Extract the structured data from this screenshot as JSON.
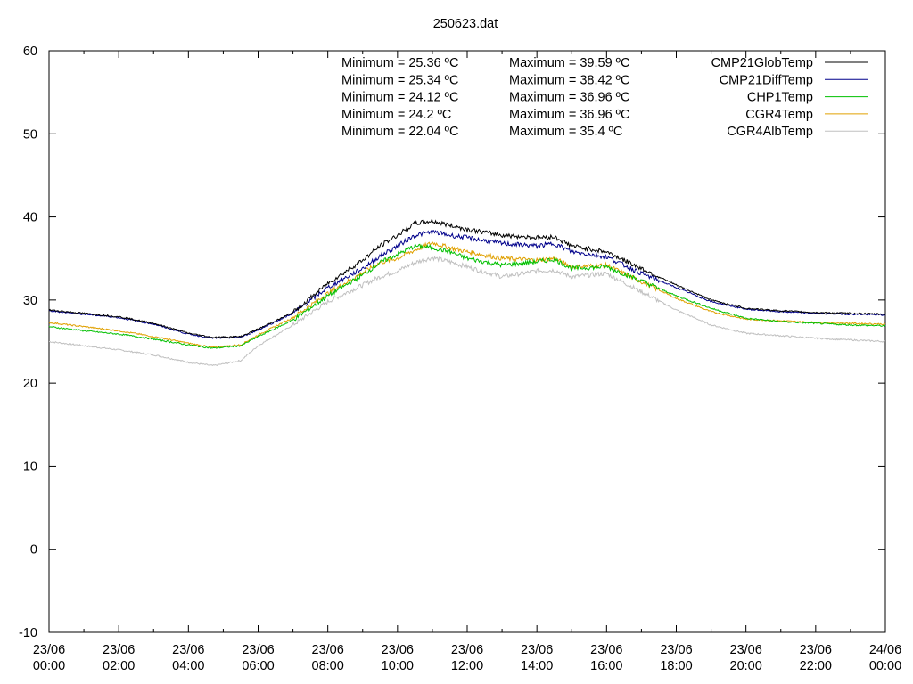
{
  "chart_data": {
    "type": "line",
    "title": "250623.dat",
    "xlabel": "",
    "ylabel": "",
    "xlim": [
      0,
      24
    ],
    "ylim": [
      -10,
      60
    ],
    "yticks": [
      -10,
      0,
      10,
      20,
      30,
      40,
      50,
      60
    ],
    "xticks": [
      {
        "x": 0,
        "date": "23/06",
        "time": "00:00"
      },
      {
        "x": 2,
        "date": "23/06",
        "time": "02:00"
      },
      {
        "x": 4,
        "date": "23/06",
        "time": "04:00"
      },
      {
        "x": 6,
        "date": "23/06",
        "time": "06:00"
      },
      {
        "x": 8,
        "date": "23/06",
        "time": "08:00"
      },
      {
        "x": 10,
        "date": "23/06",
        "time": "10:00"
      },
      {
        "x": 12,
        "date": "23/06",
        "time": "12:00"
      },
      {
        "x": 14,
        "date": "23/06",
        "time": "14:00"
      },
      {
        "x": 16,
        "date": "23/06",
        "time": "16:00"
      },
      {
        "x": 18,
        "date": "23/06",
        "time": "18:00"
      },
      {
        "x": 20,
        "date": "23/06",
        "time": "20:00"
      },
      {
        "x": 22,
        "date": "23/06",
        "time": "22:00"
      },
      {
        "x": 24,
        "date": "24/06",
        "time": "00:00"
      }
    ],
    "grid": false,
    "legend_position": "top-right",
    "stats": [
      {
        "min": "Minimum = 25.36 ºC",
        "max": "Maximum = 39.59 ºC"
      },
      {
        "min": "Minimum = 25.34 ºC",
        "max": "Maximum = 38.42 ºC"
      },
      {
        "min": "Minimum = 24.12 ºC",
        "max": "Maximum = 36.96 ºC"
      },
      {
        "min": "Minimum = 24.2 ºC",
        "max": "Maximum = 36.96 ºC"
      },
      {
        "min": "Minimum = 22.04 ºC",
        "max": "Maximum = 35.4 ºC"
      }
    ],
    "series": [
      {
        "name": "CMP21GlobTemp",
        "color": "#000000",
        "x": [
          0,
          1,
          2,
          3,
          4,
          4.7,
          5.5,
          6,
          7,
          8,
          9,
          9.5,
          10,
          10.5,
          11,
          11.5,
          12,
          13,
          14,
          14.5,
          15,
          16,
          17,
          18,
          19,
          20,
          21,
          22,
          23,
          24
        ],
        "y": [
          28.8,
          28.4,
          28.0,
          27.2,
          26.0,
          25.5,
          25.6,
          26.5,
          28.5,
          32.0,
          34.8,
          36.5,
          37.8,
          39.2,
          39.5,
          39.0,
          38.5,
          37.8,
          37.5,
          37.6,
          36.5,
          35.8,
          33.8,
          31.8,
          30.0,
          29.0,
          28.7,
          28.5,
          28.4,
          28.3
        ]
      },
      {
        "name": "CMP21DiffTemp",
        "color": "#00008b",
        "x": [
          0,
          1,
          2,
          3,
          4,
          4.7,
          5.5,
          6,
          7,
          8,
          9,
          9.5,
          10,
          10.5,
          11,
          11.5,
          12,
          13,
          14,
          14.5,
          15,
          16,
          17,
          18,
          19,
          20,
          21,
          22,
          23,
          24
        ],
        "y": [
          28.7,
          28.3,
          27.9,
          27.1,
          25.9,
          25.4,
          25.5,
          26.4,
          28.4,
          31.5,
          33.8,
          35.3,
          36.5,
          37.8,
          38.2,
          37.8,
          37.5,
          36.8,
          36.5,
          36.8,
          35.8,
          35.2,
          33.2,
          31.5,
          29.8,
          28.9,
          28.6,
          28.4,
          28.3,
          28.2
        ]
      },
      {
        "name": "CHP1Temp",
        "color": "#00c000",
        "x": [
          0,
          1,
          2,
          3,
          4,
          4.7,
          5.5,
          6,
          7,
          8,
          9,
          9.5,
          10,
          10.5,
          11,
          11.5,
          12,
          13,
          14,
          14.5,
          15,
          16,
          17,
          18,
          19,
          20,
          21,
          22,
          23,
          24
        ],
        "y": [
          26.8,
          26.3,
          25.9,
          25.3,
          24.6,
          24.2,
          24.5,
          25.6,
          27.6,
          30.5,
          33.0,
          34.5,
          35.5,
          36.5,
          36.3,
          35.8,
          35.0,
          34.2,
          34.6,
          34.9,
          33.8,
          34.0,
          32.3,
          30.5,
          29.0,
          27.8,
          27.4,
          27.2,
          27.0,
          26.9
        ]
      },
      {
        "name": "CGR4Temp",
        "color": "#e0a000",
        "x": [
          0,
          1,
          2,
          3,
          4,
          4.7,
          5.5,
          6,
          7,
          8,
          9,
          9.5,
          10,
          10.5,
          11,
          11.5,
          12,
          13,
          14,
          14.5,
          15,
          16,
          17,
          18,
          19,
          20,
          21,
          22,
          23,
          24
        ],
        "y": [
          27.3,
          26.8,
          26.3,
          25.6,
          24.8,
          24.3,
          24.6,
          25.8,
          27.9,
          30.8,
          33.3,
          34.5,
          35.0,
          36.0,
          36.9,
          36.3,
          35.8,
          35.0,
          34.8,
          35.0,
          34.0,
          34.2,
          32.2,
          30.2,
          28.6,
          27.7,
          27.5,
          27.3,
          27.2,
          27.1
        ]
      },
      {
        "name": "CGR4AlbTemp",
        "color": "#c0c0c0",
        "x": [
          0,
          1,
          2,
          3,
          4,
          4.7,
          5.5,
          6,
          7,
          8,
          9,
          9.5,
          10,
          10.5,
          11,
          11.5,
          12,
          13,
          14,
          14.5,
          15,
          16,
          17,
          18,
          19,
          20,
          21,
          22,
          23,
          24
        ],
        "y": [
          25.0,
          24.5,
          24.0,
          23.4,
          22.5,
          22.1,
          22.7,
          24.5,
          27.0,
          29.8,
          31.8,
          32.8,
          33.5,
          34.5,
          35.1,
          34.6,
          34.0,
          32.8,
          33.5,
          33.6,
          32.8,
          33.2,
          31.0,
          28.8,
          27.0,
          26.0,
          25.7,
          25.4,
          25.2,
          25.0
        ]
      }
    ]
  }
}
